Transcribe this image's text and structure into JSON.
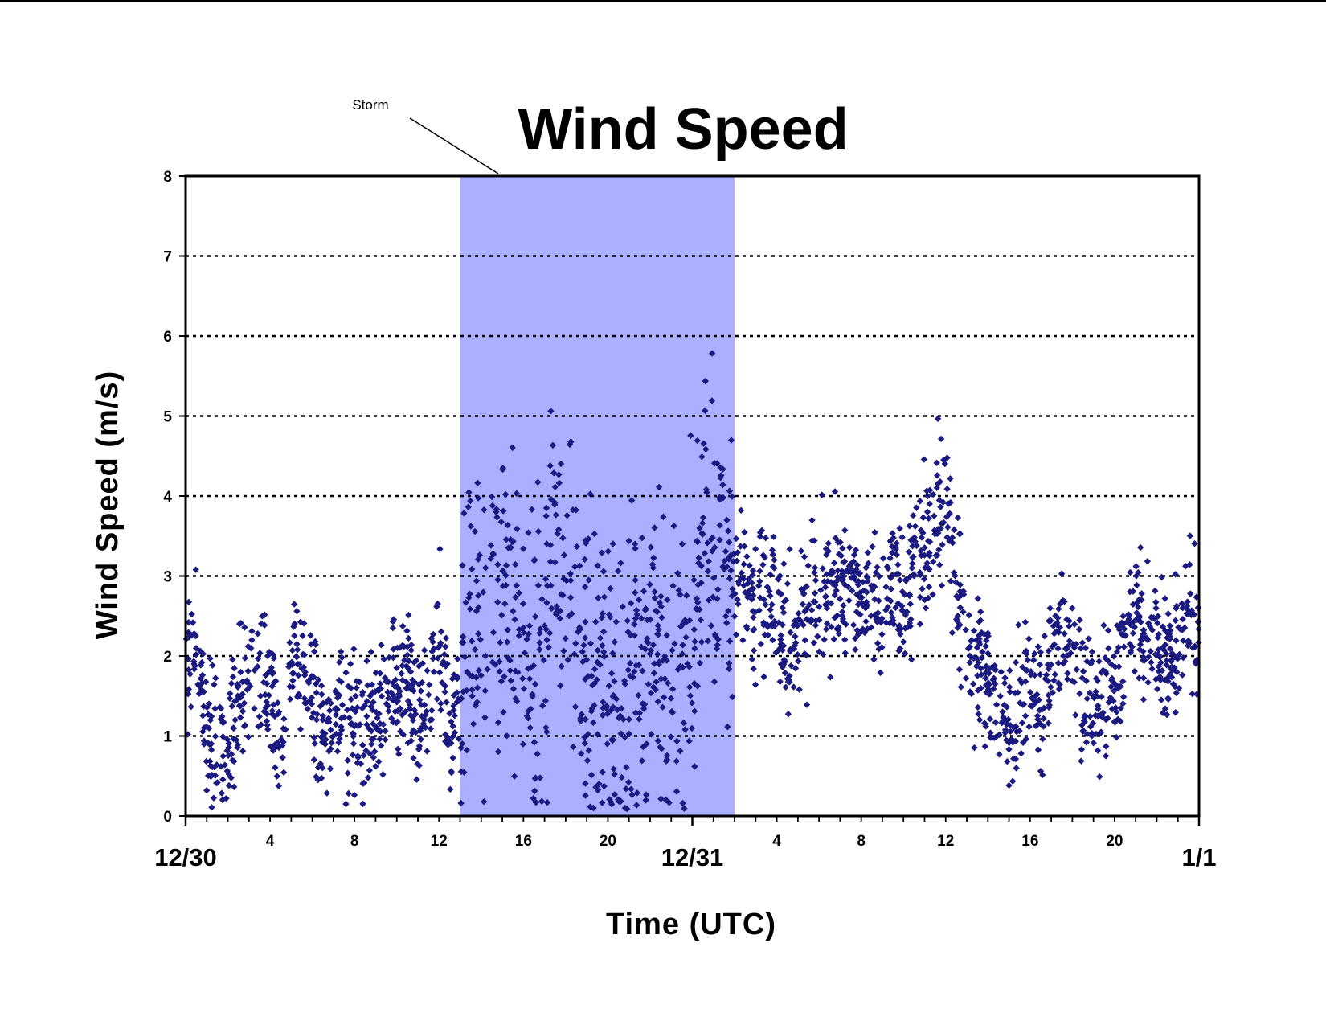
{
  "chart_data": {
    "type": "scatter",
    "title": "Wind Speed",
    "xlabel": "Time (UTC)",
    "ylabel": "Wind Speed (m/s)",
    "xlim": [
      0,
      48
    ],
    "ylim": [
      0,
      8
    ],
    "y_ticks": [
      "0",
      "1",
      "2",
      "3",
      "4",
      "5",
      "6",
      "7",
      "8"
    ],
    "x_hour_ticks": [
      {
        "x": 4,
        "label": "4"
      },
      {
        "x": 8,
        "label": "8"
      },
      {
        "x": 12,
        "label": "12"
      },
      {
        "x": 16,
        "label": "16"
      },
      {
        "x": 20,
        "label": "20"
      },
      {
        "x": 28,
        "label": "4"
      },
      {
        "x": 32,
        "label": "8"
      },
      {
        "x": 36,
        "label": "12"
      },
      {
        "x": 40,
        "label": "16"
      },
      {
        "x": 44,
        "label": "20"
      }
    ],
    "x_date_labels": [
      {
        "x": 0,
        "label": "12/30"
      },
      {
        "x": 24,
        "label": "12/31"
      },
      {
        "x": 48,
        "label": "1/1"
      }
    ],
    "grid": "horizontal dotted",
    "marker_color": "#1a1a80",
    "highlight": {
      "label": "Storm",
      "x_start": 13,
      "x_end": 26,
      "color": "#aab0ff"
    },
    "series": [
      {
        "x": [
          0.0,
          0.5,
          1.0,
          1.5,
          2.0,
          2.5,
          3.0,
          3.5,
          4.0,
          4.5,
          5.0,
          5.5,
          6.0,
          6.5,
          7.0,
          7.5,
          8.0,
          8.5,
          9.0,
          9.5,
          10.0,
          10.5,
          11.0,
          11.5,
          12.0,
          12.5,
          13.0,
          13.5,
          14.0,
          14.5,
          15.0,
          15.5,
          16.0,
          16.5,
          17.0,
          17.5,
          18.0,
          18.5,
          19.0,
          19.5,
          20.0,
          20.5,
          21.0,
          21.5,
          22.0,
          22.5,
          23.0,
          23.5,
          24.0,
          24.5,
          25.0,
          25.5,
          26.0,
          26.5,
          27.0,
          27.5,
          28.0,
          28.5,
          29.0,
          29.5,
          30.0,
          30.5,
          31.0,
          31.5,
          32.0,
          32.5,
          33.0,
          33.5,
          34.0,
          34.5,
          35.0,
          35.5,
          36.0,
          36.5,
          37.0,
          37.5,
          38.0,
          38.5,
          39.0,
          39.5,
          40.0,
          40.5,
          41.0,
          41.5,
          42.0,
          42.5,
          43.0,
          43.5,
          44.0,
          44.5,
          45.0,
          45.5,
          46.0,
          46.5,
          47.0,
          47.5,
          48.0
        ],
        "y": [
          1.8,
          2.1,
          1.0,
          0.8,
          0.7,
          1.6,
          1.7,
          1.8,
          1.5,
          0.9,
          1.8,
          1.9,
          1.4,
          0.9,
          1.3,
          1.2,
          1.0,
          1.1,
          1.2,
          1.4,
          1.6,
          1.8,
          1.3,
          1.5,
          2.2,
          1.0,
          1.6,
          2.8,
          2.3,
          2.7,
          2.9,
          2.4,
          1.8,
          1.4,
          2.5,
          3.5,
          2.7,
          2.5,
          1.7,
          1.5,
          1.9,
          1.3,
          1.6,
          1.9,
          2.2,
          2.4,
          1.3,
          1.9,
          2.1,
          3.6,
          3.3,
          3.5,
          2.7,
          2.9,
          2.6,
          2.8,
          2.6,
          2.1,
          2.5,
          2.7,
          2.9,
          2.8,
          3.0,
          2.9,
          2.8,
          2.9,
          2.7,
          2.9,
          2.6,
          3.1,
          3.3,
          3.6,
          3.9,
          3.0,
          2.0,
          2.1,
          1.9,
          1.3,
          1.1,
          1.4,
          1.6,
          1.3,
          2.0,
          2.4,
          1.9,
          1.7,
          1.4,
          1.5,
          1.7,
          2.0,
          2.6,
          2.3,
          2.2,
          1.9,
          2.1,
          2.6,
          2.2
        ]
      }
    ]
  }
}
